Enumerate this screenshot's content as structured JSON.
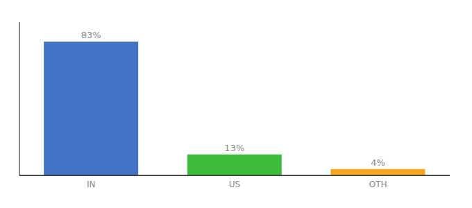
{
  "chart_data": {
    "type": "bar",
    "categories": [
      "IN",
      "US",
      "OTH"
    ],
    "values": [
      83,
      13,
      4
    ],
    "value_labels": [
      "83%",
      "13%",
      "4%"
    ],
    "colors": [
      "#4472c4",
      "#3dbb3d",
      "#f5a623"
    ],
    "ylim": [
      0,
      95
    ],
    "data_labels": true,
    "tick_labels": "x"
  }
}
